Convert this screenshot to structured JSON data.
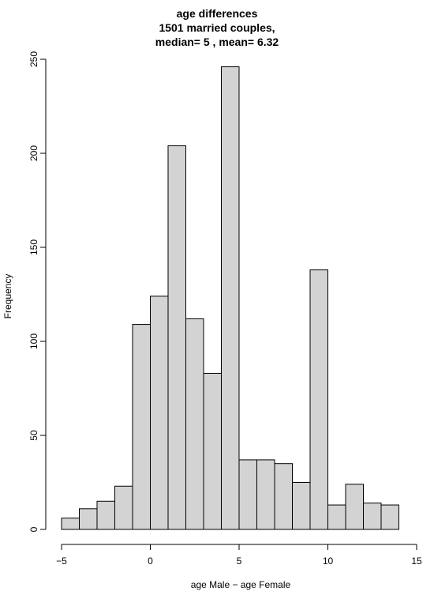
{
  "chart_data": {
    "type": "bar",
    "title_lines": [
      "age differences",
      "1501 married couples,",
      "median= 5 , mean= 6.32"
    ],
    "xlabel": "age Male − age Female",
    "ylabel": "Frequency",
    "xlim": [
      -5,
      15
    ],
    "ylim": [
      0,
      250
    ],
    "x_ticks": [
      -5,
      0,
      5,
      10,
      15
    ],
    "y_ticks": [
      0,
      50,
      100,
      150,
      200,
      250
    ],
    "bin_edges": [
      -5,
      -4,
      -3,
      -2,
      -1,
      0,
      1,
      2,
      3,
      4,
      5,
      6,
      7,
      8,
      9,
      10,
      11,
      12,
      13,
      14
    ],
    "values": [
      6,
      11,
      15,
      23,
      109,
      124,
      204,
      112,
      83,
      246,
      37,
      37,
      35,
      25,
      138,
      13,
      24,
      14,
      13
    ],
    "bar_fill": "#d3d3d3",
    "bar_stroke": "#000000",
    "grid": false
  }
}
